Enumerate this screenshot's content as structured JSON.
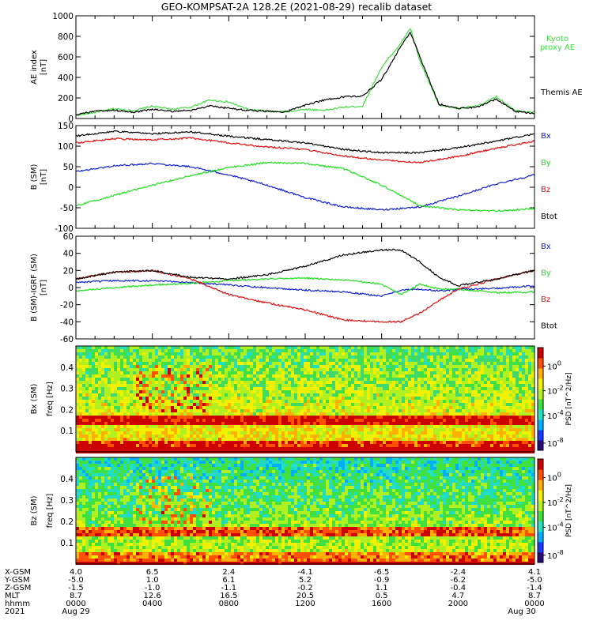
{
  "title": "GEO-KOMPSAT-2A 128.2E (2021-08-29) recalib dataset",
  "colors": {
    "black": "#000000",
    "green": "#22dd22",
    "red": "#dd1111",
    "blue": "#1122cc",
    "kyoto": "#44dd44"
  },
  "chart_data": [
    {
      "type": "line",
      "panel": "ae",
      "ylabel": "AE index [nT]",
      "ylim": [
        0,
        1000
      ],
      "yticks": [
        0,
        200,
        400,
        600,
        800,
        1000
      ],
      "x_hours": [
        0,
        1,
        2,
        3,
        4,
        5,
        6,
        7,
        8,
        9,
        10,
        11,
        12,
        13,
        14,
        15,
        16,
        17,
        17.5,
        18,
        19,
        20,
        21,
        22,
        23,
        24
      ],
      "series": [
        {
          "name": "Kyoto proxy AE",
          "color": "#44dd44",
          "values": [
            30,
            60,
            95,
            75,
            120,
            90,
            110,
            180,
            160,
            90,
            70,
            65,
            90,
            80,
            110,
            120,
            500,
            730,
            880,
            560,
            130,
            100,
            120,
            210,
            80,
            60
          ]
        },
        {
          "name": "Themis AE",
          "color": "#000000",
          "values": [
            40,
            70,
            80,
            60,
            90,
            70,
            80,
            120,
            100,
            80,
            70,
            65,
            130,
            180,
            210,
            220,
            380,
            700,
            840,
            600,
            140,
            100,
            110,
            190,
            70,
            50
          ]
        }
      ]
    },
    {
      "type": "line",
      "panel": "bsm",
      "ylabel": "B (SM) [nT]",
      "ylim": [
        -100,
        150
      ],
      "yticks": [
        -100,
        -50,
        0,
        50,
        100,
        150
      ],
      "x_hours": [
        0,
        2,
        4,
        6,
        8,
        10,
        12,
        14,
        16,
        18,
        20,
        22,
        24
      ],
      "series": [
        {
          "name": "Bx",
          "color": "#1122cc",
          "values": [
            38,
            52,
            58,
            50,
            30,
            5,
            -25,
            -48,
            -55,
            -48,
            -22,
            8,
            30
          ]
        },
        {
          "name": "By",
          "color": "#22dd22",
          "values": [
            -45,
            -20,
            5,
            28,
            48,
            60,
            58,
            45,
            5,
            -45,
            -55,
            -58,
            -52
          ]
        },
        {
          "name": "Bz",
          "color": "#dd1111",
          "values": [
            108,
            118,
            115,
            120,
            108,
            98,
            92,
            76,
            66,
            60,
            75,
            95,
            112
          ]
        },
        {
          "name": "Btot",
          "color": "#000000",
          "values": [
            125,
            136,
            130,
            135,
            124,
            116,
            108,
            92,
            84,
            84,
            96,
            112,
            130
          ]
        }
      ]
    },
    {
      "type": "line",
      "panel": "bdiff",
      "ylabel": "B (SM)-IGRF (SM) [nT]",
      "ylim": [
        -60,
        60
      ],
      "yticks": [
        -60,
        -40,
        -20,
        0,
        20,
        40,
        60
      ],
      "x_hours": [
        0,
        2,
        4,
        6,
        8,
        10,
        12,
        14,
        16,
        17,
        18,
        19,
        20,
        22,
        24
      ],
      "series": [
        {
          "name": "Bx",
          "color": "#1122cc",
          "values": [
            6,
            8,
            8,
            6,
            3,
            0,
            -3,
            -5,
            -10,
            -3,
            -2,
            -4,
            -2,
            -1,
            2
          ]
        },
        {
          "name": "By",
          "color": "#22dd22",
          "values": [
            -4,
            0,
            3,
            5,
            8,
            10,
            11,
            9,
            4,
            -8,
            4,
            -2,
            -2,
            -6,
            -5
          ]
        },
        {
          "name": "Bz",
          "color": "#dd1111",
          "values": [
            10,
            18,
            20,
            10,
            -8,
            -18,
            -26,
            -38,
            -40,
            -40,
            -30,
            -15,
            -2,
            10,
            20
          ]
        },
        {
          "name": "Btot",
          "color": "#000000",
          "values": [
            10,
            18,
            20,
            12,
            10,
            15,
            25,
            38,
            44,
            44,
            30,
            12,
            2,
            10,
            20
          ]
        }
      ]
    },
    {
      "type": "heatmap",
      "panel": "spec_bx",
      "ylabel": "Bx (SM) freq [Hz]",
      "ylim": [
        0,
        0.5
      ],
      "yticks": [
        0.1,
        0.2,
        0.3,
        0.4
      ],
      "colorbar_label": "PSD [nT^2/Hz]",
      "colorbar_ticks": [
        "10^0",
        "10^-2",
        "10^-4",
        "10^-8"
      ]
    },
    {
      "type": "heatmap",
      "panel": "spec_bz",
      "ylabel": "Bz (SM) freq [Hz]",
      "ylim": [
        0,
        0.5
      ],
      "yticks": [
        0.1,
        0.2,
        0.3,
        0.4
      ],
      "colorbar_label": "PSD [nT^2/Hz]",
      "colorbar_ticks": [
        "10^0",
        "10^-2",
        "10^-4",
        "10^-8"
      ]
    }
  ],
  "ticks": {
    "labels": [
      "X-GSM",
      "Y-GSM",
      "Z-GSM",
      "MLT",
      "hhmm",
      "2021"
    ],
    "rows": [
      [
        "4.0",
        "6.5",
        "2.4",
        "-4.1",
        "-6.5",
        "-2.4",
        "4.1"
      ],
      [
        "-5.0",
        "1.0",
        "6.1",
        "5.2",
        "-0.9",
        "-6.2",
        "-5.0"
      ],
      [
        "-1.5",
        "-1.0",
        "-1.1",
        "-0.2",
        "1.1",
        "-0.4",
        "-1.4"
      ],
      [
        "8.7",
        "12.6",
        "16.5",
        "20.5",
        "0.5",
        "4.7",
        "8.7"
      ],
      [
        "0000",
        "0400",
        "0800",
        "1200",
        "1600",
        "2000",
        "0000"
      ],
      [
        "Aug 29",
        "",
        "",
        "",
        "",
        "",
        "Aug 30"
      ]
    ]
  }
}
